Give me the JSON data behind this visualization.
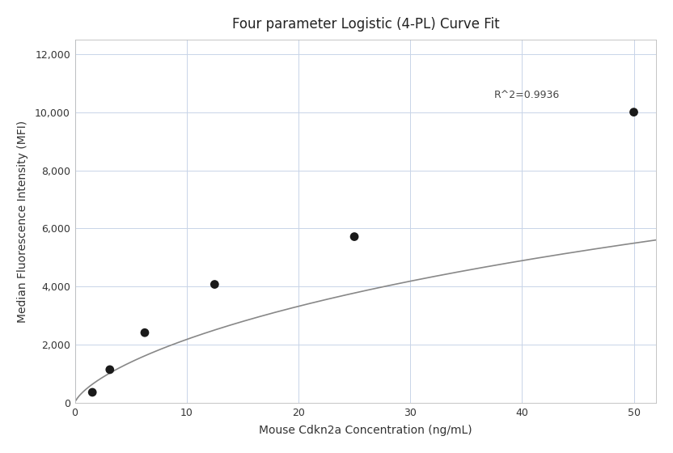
{
  "title": "Four parameter Logistic (4-PL) Curve Fit",
  "xlabel": "Mouse Cdkn2a Concentration (ng/mL)",
  "ylabel": "Median Fluorescence Intensity (MFI)",
  "x_data": [
    1.563,
    3.125,
    6.25,
    12.5,
    25.0,
    50.0
  ],
  "y_data": [
    370,
    1150,
    2420,
    4080,
    5720,
    10000
  ],
  "xlim": [
    0,
    52
  ],
  "ylim": [
    0,
    12500
  ],
  "xticks": [
    0,
    10,
    20,
    30,
    40,
    50
  ],
  "yticks": [
    0,
    2000,
    4000,
    6000,
    8000,
    10000,
    12000
  ],
  "r_squared": "R^2=0.9936",
  "curve_color": "#888888",
  "dot_color": "#1a1a1a",
  "dot_size": 60,
  "background_color": "#ffffff",
  "grid_color": "#c8d4e8",
  "title_fontsize": 12,
  "label_fontsize": 10,
  "tick_fontsize": 9
}
